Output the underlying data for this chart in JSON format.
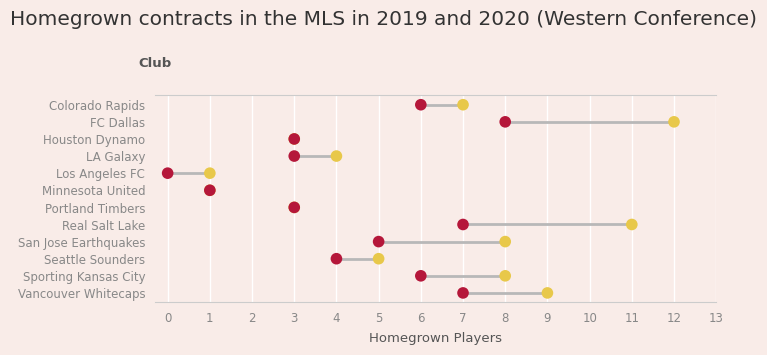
{
  "title": "Homegrown contracts in the MLS in 2019 and 2020 (Western Conference)",
  "xlabel": "Homegrown Players",
  "ylabel": "Club",
  "background_color": "#f9ece8",
  "clubs": [
    "Colorado Rapids",
    "FC Dallas",
    "Houston Dynamo",
    "LA Galaxy",
    "Los Angeles FC",
    "Minnesota United",
    "Portland Timbers",
    "Real Salt Lake",
    "San Jose Earthquakes",
    "Seattle Sounders",
    "Sporting Kansas City",
    "Vancouver Whitecaps"
  ],
  "values_2019": [
    6,
    8,
    3,
    3,
    0,
    1,
    3,
    7,
    5,
    4,
    6,
    7
  ],
  "values_2020": [
    7,
    12,
    3,
    4,
    1,
    1,
    3,
    11,
    8,
    5,
    8,
    9
  ],
  "color_2019": "#b5173a",
  "color_2020": "#e8c84a",
  "line_color": "#b8b8b8",
  "xlim": [
    -0.3,
    13
  ],
  "xticks": [
    0,
    1,
    2,
    3,
    4,
    5,
    6,
    7,
    8,
    9,
    10,
    11,
    12,
    13
  ],
  "title_fontsize": 14.5,
  "axis_label_fontsize": 9.5,
  "tick_fontsize": 8.5,
  "club_label_fontsize": 8.5,
  "dot_size": 70,
  "line_width": 2.0
}
